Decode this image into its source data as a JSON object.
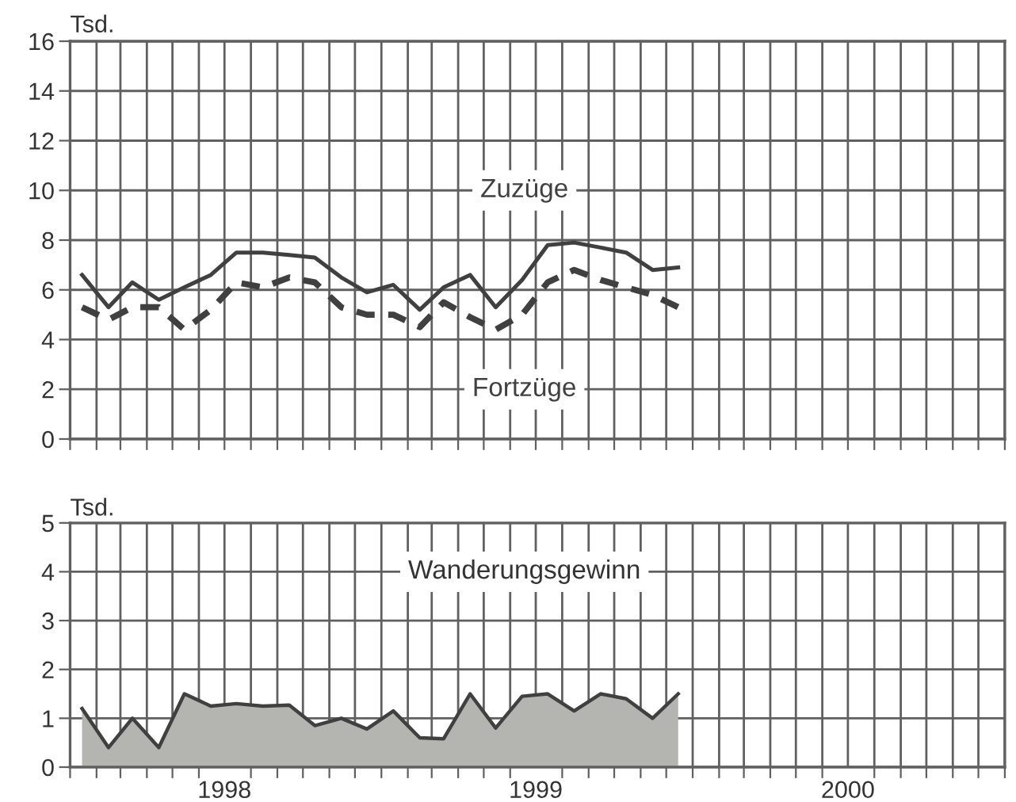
{
  "chart_data": [
    {
      "type": "line",
      "ylabel": "Tsd.",
      "xlim": [
        "1998-01-01",
        "2001-01-01"
      ],
      "ylim": [
        0,
        16
      ],
      "yticks": [
        0,
        2,
        4,
        6,
        8,
        10,
        12,
        14,
        16
      ],
      "xticks": [
        {
          "value": "1998-01-01",
          "label": null
        },
        {
          "value": "1998-02-01",
          "label": null
        },
        {
          "value": "1998-03-01",
          "label": null
        },
        {
          "value": "1998-04-01",
          "label": null
        },
        {
          "value": "1998-05-01",
          "label": null
        },
        {
          "value": "1998-06-01",
          "label": null
        },
        {
          "value": "1998-07-01",
          "label": null
        },
        {
          "value": "1998-08-01",
          "label": null
        },
        {
          "value": "1998-09-01",
          "label": null
        },
        {
          "value": "1998-10-01",
          "label": null
        },
        {
          "value": "1998-11-01",
          "label": null
        },
        {
          "value": "1998-12-01",
          "label": null
        },
        {
          "value": "1999-01-01",
          "label": null
        },
        {
          "value": "1999-02-01",
          "label": null
        },
        {
          "value": "1999-03-01",
          "label": null
        },
        {
          "value": "1999-04-01",
          "label": null
        },
        {
          "value": "1999-05-01",
          "label": null
        },
        {
          "value": "1999-06-01",
          "label": null
        },
        {
          "value": "1999-07-01",
          "label": null
        },
        {
          "value": "1999-08-01",
          "label": null
        },
        {
          "value": "1999-09-01",
          "label": null
        },
        {
          "value": "1999-10-01",
          "label": null
        },
        {
          "value": "1999-11-01",
          "label": null
        },
        {
          "value": "1999-12-01",
          "label": null
        },
        {
          "value": "2000-01-01",
          "label": null
        },
        {
          "value": "2000-02-01",
          "label": null
        },
        {
          "value": "2000-03-01",
          "label": null
        },
        {
          "value": "2000-04-01",
          "label": null
        },
        {
          "value": "2000-05-01",
          "label": null
        },
        {
          "value": "2000-06-01",
          "label": null
        },
        {
          "value": "2000-07-01",
          "label": null
        },
        {
          "value": "2000-08-01",
          "label": null
        },
        {
          "value": "2000-09-01",
          "label": null
        },
        {
          "value": "2000-10-01",
          "label": null
        },
        {
          "value": "2000-11-01",
          "label": null
        },
        {
          "value": "2000-12-01",
          "label": null
        },
        {
          "value": "2001-01-01",
          "label": null
        }
      ],
      "tick_labels": "y",
      "grid": true,
      "marker": "none",
      "x": [
        "1998-01-15",
        "1998-02-15",
        "1998-03-15",
        "1998-04-15",
        "1998-05-15",
        "1998-06-15",
        "1998-07-15",
        "1998-08-15",
        "1998-09-15",
        "1998-10-15",
        "1998-11-15",
        "1998-12-15",
        "1999-01-15",
        "1999-02-15",
        "1999-03-15",
        "1999-04-15",
        "1999-05-15",
        "1999-06-15",
        "1999-07-15",
        "1999-08-15",
        "1999-09-15",
        "1999-10-15",
        "1999-11-15",
        "1999-12-15"
      ],
      "series": [
        {
          "name": "Zuzüge",
          "color": "#404040",
          "line_style": "solid",
          "values": [
            6.6,
            5.3,
            6.3,
            5.6,
            6.1,
            6.6,
            7.5,
            7.5,
            7.4,
            7.3,
            6.5,
            5.9,
            6.2,
            5.2,
            6.1,
            6.6,
            5.3,
            6.4,
            7.8,
            7.9,
            7.7,
            7.5,
            6.8,
            6.9
          ]
        },
        {
          "name": "Fortzüge",
          "color": "#404040",
          "line_style": "dashed",
          "values": [
            5.3,
            4.8,
            5.3,
            5.3,
            4.4,
            5.2,
            6.3,
            6.1,
            6.5,
            6.3,
            5.3,
            5.0,
            5.0,
            4.5,
            5.5,
            4.9,
            4.4,
            5.0,
            6.3,
            6.8,
            6.4,
            6.1,
            5.8,
            5.3
          ]
        }
      ]
    },
    {
      "type": "area",
      "ylabel": "Tsd.",
      "xlim": [
        "1998-01-01",
        "2001-01-01"
      ],
      "ylim": [
        0,
        5
      ],
      "yticks": [
        0,
        1,
        2,
        3,
        4,
        5
      ],
      "xticks": [
        {
          "value": "1998-01-01",
          "label": null
        },
        {
          "value": "1998-02-01",
          "label": null
        },
        {
          "value": "1998-03-01",
          "label": null
        },
        {
          "value": "1998-04-01",
          "label": null
        },
        {
          "value": "1998-05-01",
          "label": null
        },
        {
          "value": "1998-06-01",
          "label": null
        },
        {
          "value": "1998-07-01",
          "label": "1998"
        },
        {
          "value": "1998-08-01",
          "label": null
        },
        {
          "value": "1998-09-01",
          "label": null
        },
        {
          "value": "1998-10-01",
          "label": null
        },
        {
          "value": "1998-11-01",
          "label": null
        },
        {
          "value": "1998-12-01",
          "label": null
        },
        {
          "value": "1999-01-01",
          "label": null
        },
        {
          "value": "1999-02-01",
          "label": null
        },
        {
          "value": "1999-03-01",
          "label": null
        },
        {
          "value": "1999-04-01",
          "label": null
        },
        {
          "value": "1999-05-01",
          "label": null
        },
        {
          "value": "1999-06-01",
          "label": null
        },
        {
          "value": "1999-07-01",
          "label": "1999"
        },
        {
          "value": "1999-08-01",
          "label": null
        },
        {
          "value": "1999-09-01",
          "label": null
        },
        {
          "value": "1999-10-01",
          "label": null
        },
        {
          "value": "1999-11-01",
          "label": null
        },
        {
          "value": "1999-12-01",
          "label": null
        },
        {
          "value": "2000-01-01",
          "label": null
        },
        {
          "value": "2000-02-01",
          "label": null
        },
        {
          "value": "2000-03-01",
          "label": null
        },
        {
          "value": "2000-04-01",
          "label": null
        },
        {
          "value": "2000-05-01",
          "label": null
        },
        {
          "value": "2000-06-01",
          "label": null
        },
        {
          "value": "2000-07-01",
          "label": "2000"
        },
        {
          "value": "2000-08-01",
          "label": null
        },
        {
          "value": "2000-09-01",
          "label": null
        },
        {
          "value": "2000-10-01",
          "label": null
        },
        {
          "value": "2000-11-01",
          "label": null
        },
        {
          "value": "2000-12-01",
          "label": null
        },
        {
          "value": "2001-01-01",
          "label": null
        }
      ],
      "grid": true,
      "x": [
        "1998-01-15",
        "1998-02-15",
        "1998-03-15",
        "1998-04-15",
        "1998-05-15",
        "1998-06-15",
        "1998-07-15",
        "1998-08-15",
        "1998-09-15",
        "1998-10-15",
        "1998-11-15",
        "1998-12-15",
        "1999-01-15",
        "1999-02-15",
        "1999-03-15",
        "1999-04-15",
        "1999-05-15",
        "1999-06-15",
        "1999-07-15",
        "1999-08-15",
        "1999-09-15",
        "1999-10-15",
        "1999-11-15",
        "1999-12-15"
      ],
      "series": [
        {
          "name": "Wanderungsgewinn",
          "color": "#b4b4b0",
          "values": [
            1.2,
            0.4,
            1.0,
            0.4,
            1.5,
            1.25,
            1.3,
            1.25,
            1.27,
            0.85,
            1.0,
            0.78,
            1.15,
            0.6,
            0.58,
            1.5,
            0.8,
            1.45,
            1.5,
            1.15,
            1.5,
            1.4,
            1.0,
            1.5
          ]
        }
      ]
    }
  ]
}
